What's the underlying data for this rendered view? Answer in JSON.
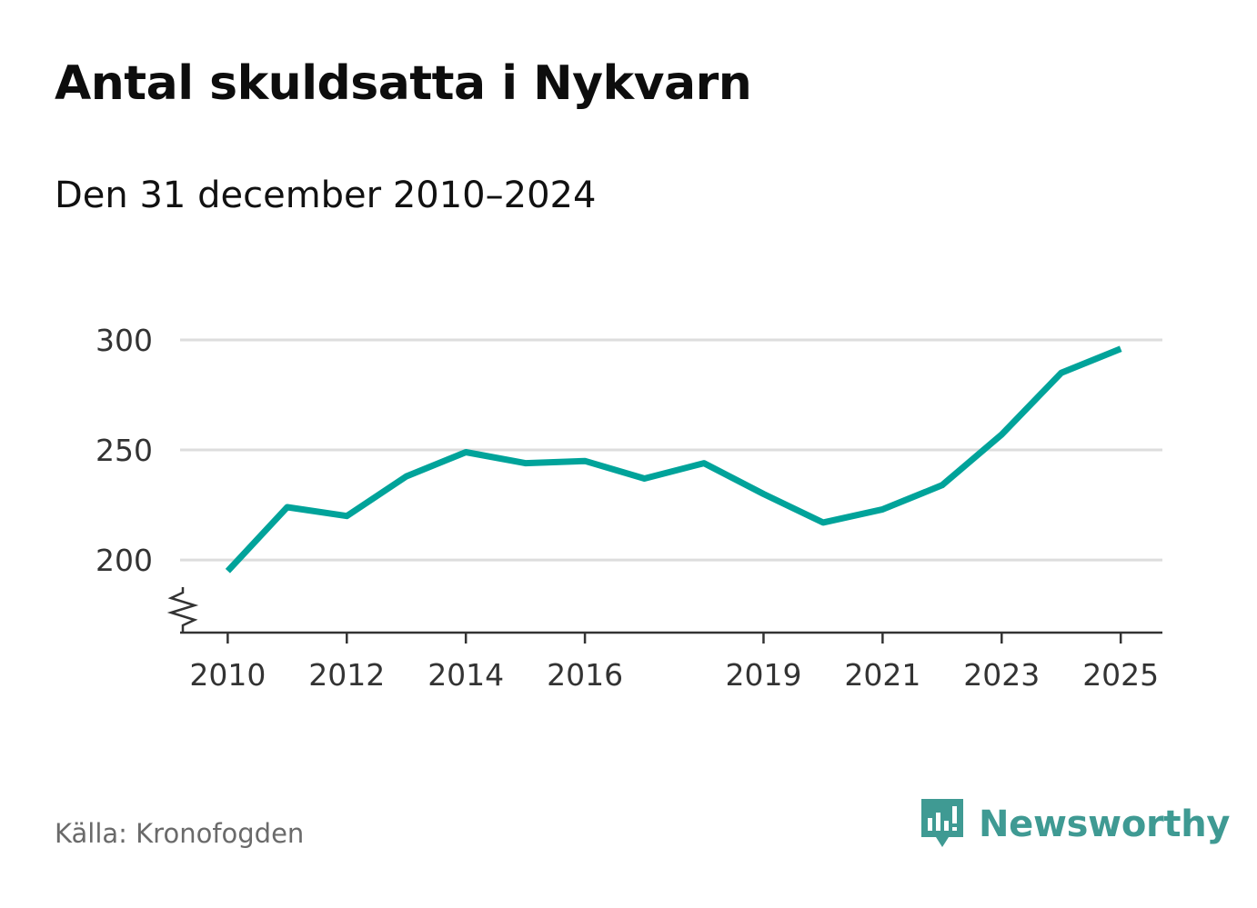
{
  "title": "Antal skuldsatta i Nykvarn",
  "subtitle": "Den 31 december 2010–2024",
  "source": "Källa: Kronofogden",
  "brand": {
    "name": "Newsworthy",
    "icon": "newsworthy-logo-icon",
    "color": "#3f9a93"
  },
  "chart_data": {
    "type": "line",
    "title": "Antal skuldsatta i Nykvarn",
    "subtitle": "Den 31 december 2010–2024",
    "xlabel": "",
    "ylabel": "",
    "x": [
      2010,
      2011,
      2012,
      2013,
      2014,
      2015,
      2016,
      2017,
      2018,
      2019,
      2020,
      2021,
      2022,
      2023,
      2024,
      2025
    ],
    "series": [
      {
        "name": "Antal skuldsatta",
        "color": "#00a39a",
        "values": [
          195,
          224,
          220,
          238,
          249,
          244,
          245,
          237,
          244,
          230,
          217,
          223,
          234,
          257,
          285,
          296
        ]
      }
    ],
    "xticks": [
      "2010",
      "2012",
      "2014",
      "2016",
      "2019",
      "2021",
      "2023",
      "2025"
    ],
    "xtick_values": [
      2010,
      2012,
      2014,
      2016,
      2019,
      2021,
      2023,
      2025
    ],
    "yticks": [
      "200",
      "250",
      "300"
    ],
    "ytick_values": [
      200,
      250,
      300
    ],
    "xlim": [
      2009.2,
      2025.7
    ],
    "ylim": [
      167,
      300
    ],
    "axis_break": true,
    "grid": true,
    "gridColor": "#dddddd"
  }
}
